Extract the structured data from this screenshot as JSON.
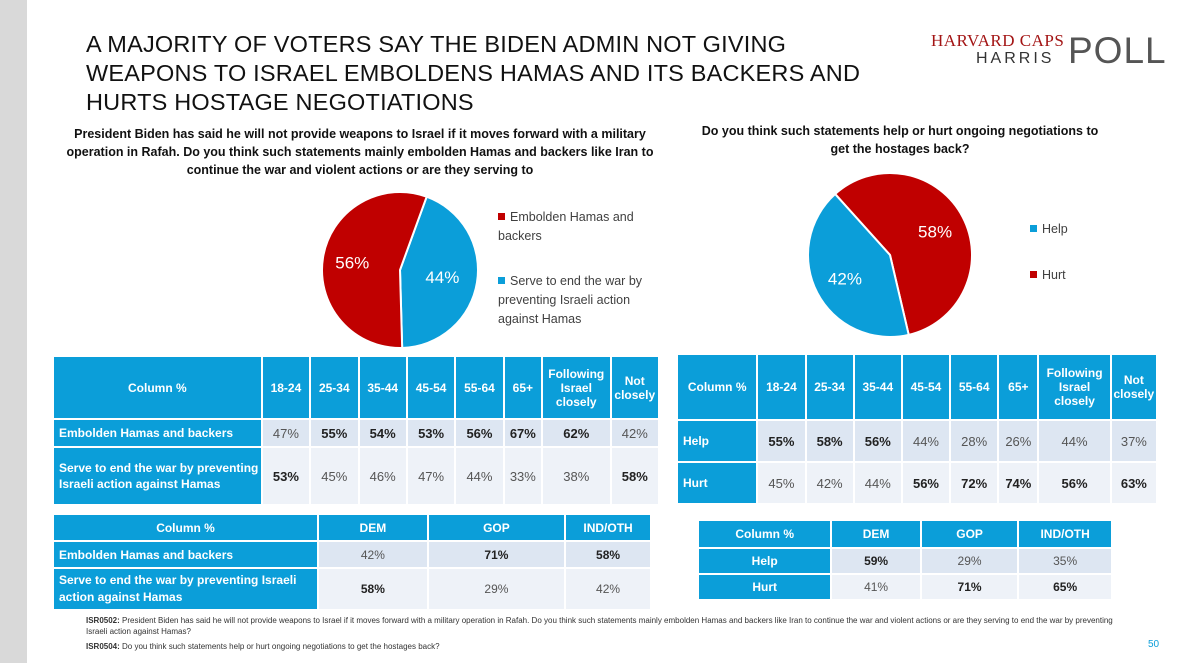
{
  "title": "A MAJORITY OF VOTERS SAY THE BIDEN ADMIN NOT GIVING WEAPONS TO ISRAEL EMBOLDENS HAMAS AND ITS BACKERS AND HURTS HOSTAGE NEGOTIATIONS",
  "logo": {
    "line1": "HARVARD CAPS",
    "line2": "HARRIS",
    "line3": "POLL"
  },
  "colors": {
    "red": "#c00000",
    "blue": "#0b9ed9",
    "header": "#0b9ed9"
  },
  "question1": "President Biden has said he will not provide weapons to Israel if it moves forward with a military operation in Rafah.  Do you think such statements mainly embolden Hamas and backers like Iran to continue the war and violent actions or are they serving to",
  "question2": "Do you think such statements help or hurt ongoing negotiations to get the hostages back?",
  "chart_data": [
    {
      "type": "pie",
      "slices": [
        {
          "label": "Embolden Hamas and backers",
          "value": 56,
          "display": "56%",
          "color": "#c00000"
        },
        {
          "label": "Serve to end the war by preventing Israeli action against Hamas",
          "value": 44,
          "display": "44%",
          "color": "#0b9ed9"
        }
      ],
      "legend_position": "right"
    },
    {
      "type": "pie",
      "slices": [
        {
          "label": "Help",
          "value": 42,
          "display": "42%",
          "color": "#0b9ed9"
        },
        {
          "label": "Hurt",
          "value": 58,
          "display": "58%",
          "color": "#c00000"
        }
      ],
      "legend_position": "right"
    }
  ],
  "table1": {
    "headers": [
      "Column %",
      "18-24",
      "25-34",
      "35-44",
      "45-54",
      "55-64",
      "65+",
      "Following Israel closely",
      "Not closely"
    ],
    "rows": [
      {
        "label": "Embolden Hamas and backers",
        "values": [
          "47%",
          "55%",
          "54%",
          "53%",
          "56%",
          "67%",
          "62%",
          "42%"
        ]
      },
      {
        "label": "Serve to end the war by preventing Israeli action against Hamas",
        "values": [
          "53%",
          "45%",
          "46%",
          "47%",
          "44%",
          "33%",
          "38%",
          "58%"
        ]
      }
    ]
  },
  "table2": {
    "headers": [
      "Column %",
      "18-24",
      "25-34",
      "35-44",
      "45-54",
      "55-64",
      "65+",
      "Following Israel closely",
      "Not closely"
    ],
    "rows": [
      {
        "label": "Help",
        "values": [
          "55%",
          "58%",
          "56%",
          "44%",
          "28%",
          "26%",
          "44%",
          "37%"
        ]
      },
      {
        "label": "Hurt",
        "values": [
          "45%",
          "42%",
          "44%",
          "56%",
          "72%",
          "74%",
          "56%",
          "63%"
        ]
      }
    ]
  },
  "table3": {
    "headers": [
      "Column %",
      "DEM",
      "GOP",
      "IND/OTH"
    ],
    "rows": [
      {
        "label": "Embolden Hamas and backers",
        "values": [
          "42%",
          "71%",
          "58%"
        ]
      },
      {
        "label": "Serve to end the war by preventing Israeli action against Hamas",
        "values": [
          "58%",
          "29%",
          "42%"
        ]
      }
    ]
  },
  "table4": {
    "headers": [
      "Column %",
      "DEM",
      "GOP",
      "IND/OTH"
    ],
    "rows": [
      {
        "label": "Help",
        "values": [
          "59%",
          "29%",
          "35%"
        ]
      },
      {
        "label": "Hurt",
        "values": [
          "41%",
          "71%",
          "65%"
        ]
      }
    ]
  },
  "footnote": {
    "code1": "ISR0502:",
    "text1": " President Biden has said he will not provide weapons to Israel if it moves forward with a military operation in Rafah. Do you think such statements mainly embolden Hamas and backers like Iran to continue the war and violent actions or are they serving to end the war by preventing Israeli action against Hamas?",
    "code2": "ISR0504:",
    "text2": " Do you think such statements help or hurt ongoing negotiations to get the hostages back?"
  },
  "page_number": "50"
}
